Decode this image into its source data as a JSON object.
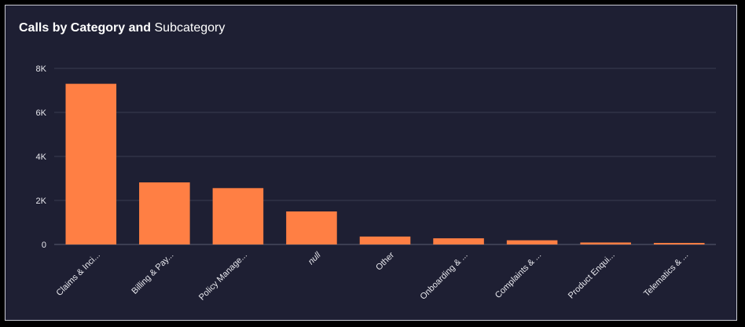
{
  "chart_data": {
    "type": "bar",
    "title_bold": "Calls by Category and",
    "title_normal": "Subcategory",
    "categories": [
      "Claims & Inci...",
      "Billing & Pay...",
      "Policy Manage...",
      "null",
      "Other",
      "Onboarding & ...",
      "Complaints & ...",
      "Product Enqui...",
      "Telematics & ..."
    ],
    "values": [
      7300,
      2820,
      2560,
      1500,
      360,
      280,
      190,
      90,
      70
    ],
    "ylim": [
      0,
      8000
    ],
    "yticks": [
      0,
      2000,
      4000,
      6000,
      8000
    ],
    "ytick_labels": [
      "0",
      "2K",
      "4K",
      "6K",
      "8K"
    ],
    "grid": true,
    "bar_color": "#ff7f44"
  }
}
